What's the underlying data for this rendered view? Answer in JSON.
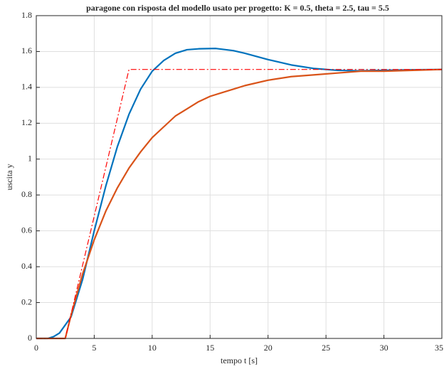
{
  "chart_data": {
    "type": "line",
    "title": "paragone con risposta del modello usato per progetto: K = 0.5, theta = 2.5, tau = 5.5",
    "xlabel": "tempo t [s]",
    "ylabel": "uscita y",
    "xlim": [
      0,
      35
    ],
    "xticks": [
      0,
      5,
      10,
      15,
      20,
      25,
      30,
      35
    ],
    "ylim": [
      0,
      1.8
    ],
    "yticks": [
      0,
      0.2,
      0.4,
      0.6,
      0.8,
      1,
      1.2,
      1.4,
      1.6,
      1.8
    ],
    "grid": true,
    "series": [
      {
        "color": "#0072bd",
        "dash": "solid",
        "x": [
          0,
          1,
          1.5,
          2,
          3,
          4,
          5,
          6,
          7,
          8,
          9,
          10,
          11,
          12,
          13,
          14,
          15.5,
          17,
          18,
          20,
          22,
          24,
          26,
          28,
          30,
          32,
          35
        ],
        "values": [
          0,
          0,
          0.01,
          0.03,
          0.12,
          0.33,
          0.6,
          0.85,
          1.07,
          1.25,
          1.39,
          1.49,
          1.55,
          1.59,
          1.61,
          1.615,
          1.617,
          1.605,
          1.59,
          1.555,
          1.525,
          1.505,
          1.495,
          1.492,
          1.495,
          1.498,
          1.5
        ]
      },
      {
        "color": "#d95319",
        "dash": "solid",
        "x": [
          0,
          2.5,
          3,
          4,
          5,
          6,
          7,
          8,
          9,
          10,
          11,
          12,
          13,
          14,
          15,
          16,
          17,
          18,
          20,
          22,
          24,
          26,
          28,
          30,
          35
        ],
        "values": [
          0,
          0,
          0.13,
          0.36,
          0.55,
          0.71,
          0.84,
          0.95,
          1.04,
          1.12,
          1.18,
          1.24,
          1.28,
          1.32,
          1.35,
          1.37,
          1.39,
          1.41,
          1.44,
          1.46,
          1.47,
          1.48,
          1.49,
          1.49,
          1.5
        ]
      },
      {
        "color": "#ff0000",
        "dash": "dashdot",
        "x": [
          0,
          2.5,
          8,
          35
        ],
        "values": [
          0,
          0,
          1.5,
          1.5
        ]
      }
    ]
  }
}
